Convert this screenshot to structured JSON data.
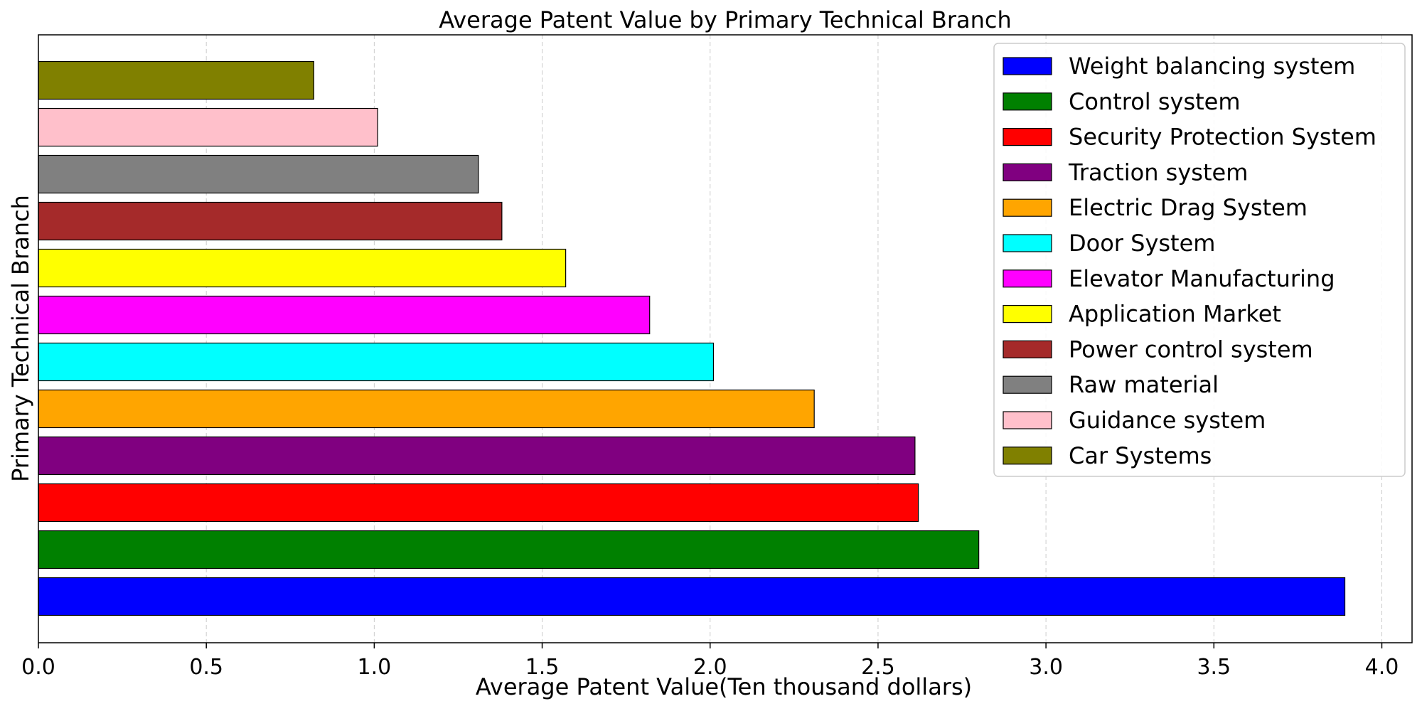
{
  "chart_data": {
    "type": "bar",
    "orientation": "horizontal",
    "title": "Average Patent Value by Primary Technical Branch",
    "xlabel": "Average Patent Value(Ten thousand dollars)",
    "ylabel": "Primary Technical Branch",
    "xlim": [
      0,
      4.09
    ],
    "xticks": [
      "0.0",
      "0.5",
      "1.0",
      "1.5",
      "2.0",
      "2.5",
      "3.0",
      "3.5",
      "4.0"
    ],
    "grid": "x-dashed",
    "legend_position": "top-right",
    "bars": [
      {
        "label": "Weight balancing system",
        "value": 3.89,
        "color": "#0000ff"
      },
      {
        "label": "Control system",
        "value": 2.8,
        "color": "#008000"
      },
      {
        "label": "Security Protection System",
        "value": 2.62,
        "color": "#ff0000"
      },
      {
        "label": "Traction system",
        "value": 2.61,
        "color": "#800080"
      },
      {
        "label": "Electric Drag System",
        "value": 2.31,
        "color": "#ffa500"
      },
      {
        "label": "Door System",
        "value": 2.01,
        "color": "#00ffff"
      },
      {
        "label": "Elevator Manufacturing",
        "value": 1.82,
        "color": "#ff00ff"
      },
      {
        "label": "Application Market",
        "value": 1.57,
        "color": "#ffff00"
      },
      {
        "label": "Power control system",
        "value": 1.38,
        "color": "#a52a2a"
      },
      {
        "label": "Raw material",
        "value": 1.31,
        "color": "#808080"
      },
      {
        "label": "Guidance system",
        "value": 1.01,
        "color": "#ffc0cb"
      },
      {
        "label": "Car Systems",
        "value": 0.82,
        "color": "#808000"
      }
    ]
  }
}
